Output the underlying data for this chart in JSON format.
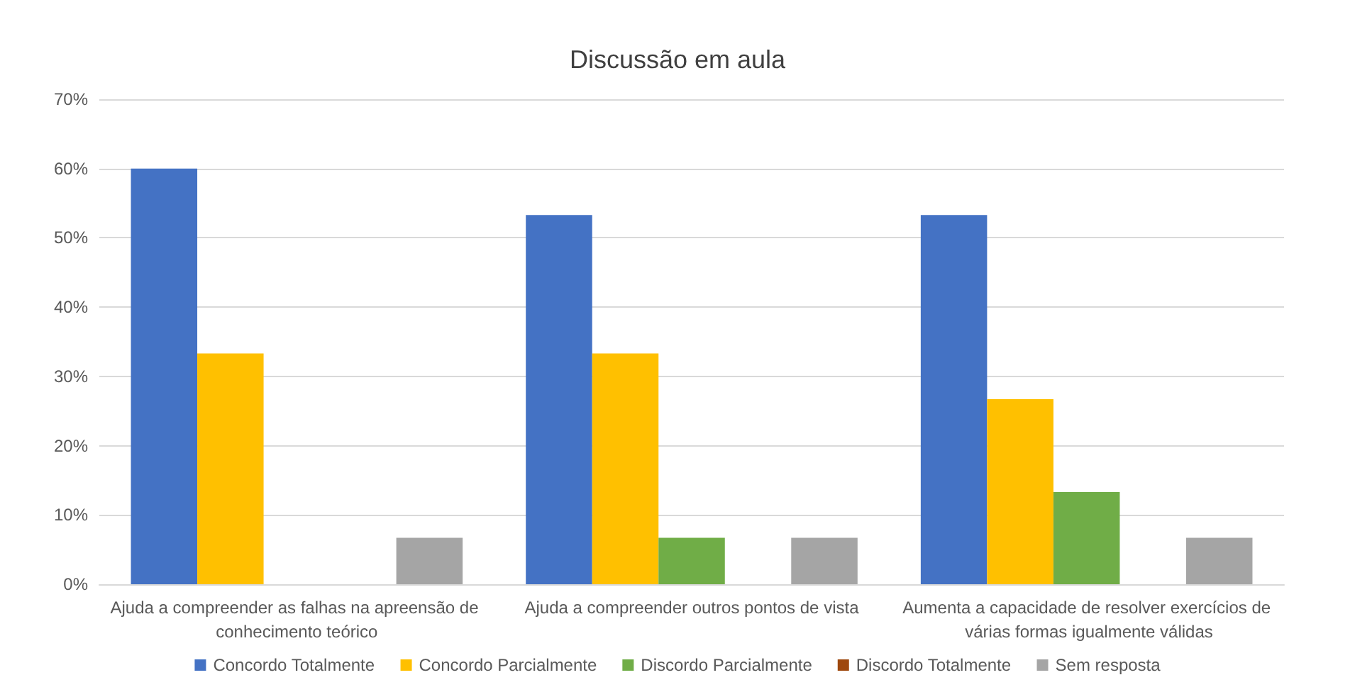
{
  "chart_data": {
    "type": "bar",
    "title": "Discussão em aula",
    "categories": [
      "Ajuda a compreender as falhas na apreensão de conhecimento teórico",
      "Ajuda a compreender outros pontos de vista",
      "Aumenta a capacidade de resolver exercícios de várias formas igualmente válidas"
    ],
    "series": [
      {
        "name": "Concordo Totalmente",
        "color": "#4472c4",
        "values": [
          60,
          53.3,
          53.3
        ]
      },
      {
        "name": "Concordo Parcialmente",
        "color": "#ffc000",
        "values": [
          33.3,
          33.3,
          26.7
        ]
      },
      {
        "name": "Discordo Parcialmente",
        "color": "#70ad47",
        "values": [
          0,
          6.7,
          13.3
        ]
      },
      {
        "name": "Discordo Totalmente",
        "color": "#9e480e",
        "values": [
          0,
          0,
          0
        ]
      },
      {
        "name": "Sem resposta",
        "color": "#a5a5a5",
        "values": [
          6.7,
          6.7,
          6.7
        ]
      }
    ],
    "ylim": [
      0,
      70
    ],
    "yticks": [
      {
        "value": 0,
        "label": "0%"
      },
      {
        "value": 10,
        "label": "10%"
      },
      {
        "value": 20,
        "label": "20%"
      },
      {
        "value": 30,
        "label": "30%"
      },
      {
        "value": 40,
        "label": "40%"
      },
      {
        "value": 50,
        "label": "50%"
      },
      {
        "value": 60,
        "label": "60%"
      },
      {
        "value": 70,
        "label": "70%"
      }
    ],
    "grid": "y",
    "legend": "bottom"
  }
}
